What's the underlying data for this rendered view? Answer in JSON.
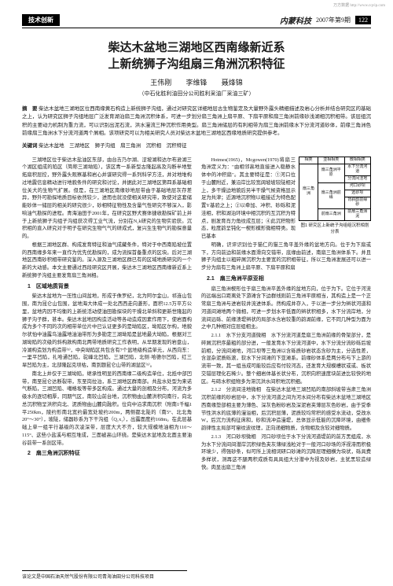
{
  "header": {
    "tag": "技术创新",
    "journal": "内蒙科技",
    "issue": "2007年第9期",
    "pagenum": "122",
    "url_note": "万方数据 http://www.cqvip.com"
  },
  "title_line1": "柴达木盆地三湖地区西南缘新近系",
  "title_line2": "上新统狮子沟组扇三角洲沉积特征",
  "authors": {
    "a1": "王伟刚",
    "a2": "李维锋",
    "a3": "聂烽锦"
  },
  "affil": "（中石化胜利油田分公司胜利采油厂采油三矿）",
  "abstract": {
    "label": "摘　要",
    "text": "柴达木盆地三湖地区位西南缘黄石构造上新统狮子沟组，通过对研究区详细地层古生物鉴定及大量野外露头精细描述及岩心分析并结合研究区的基础之上，认为研究区狮子沟组地层广泛发育湖泊扇三角洲沉积体系，可进一步划分扇三角洲上扇平原、下扇平原和扇三角洲前缘砂浅湖相沉积相带。该层组沉积的主要动力机制为重力流，可以识别出泥石流，洪水漫流三种沉积作用类型。扇三角洲储层的有利相带为扇三角洲前缘水下分流河道砂体，前缘三角洲色前缘扇三角洲水下分流河道两个屑相。该项研究可以为相关研究人员对柴达木盆地三湖地区西缘地质研究提供参考。"
  },
  "keywords": {
    "label": "关键词",
    "text": "柴达木盆地　三湖地区　狮子沟组　扇三角洲　沉积相　沉积特征"
  },
  "col1": {
    "p1": "三湖地区位于柴达木盐油区东部，由台吉乃尔湖、涩坡湖和达尔布逊湖三个湖区组成的陷区（简称三湖坳陷），该区青一系新型古隆起高及沟断半地堑拓扇积层控，野外露头观察基和岩心并谋研究得一系列科学方法，并对地堆构过地震信息精动进行地貌条件的研究和讨论，并据此对三湖地区第四系基础相位关大的生物气扩展。但是，在三湖地区南缘砂地层带由于基础地层灰存差异，野外可勘探地质目标依然较少，进而也就没使相关研究带，致使对这套储能砂体一储层的相关的研究很少，砂相特征物性及含量气性研究不够深入，影响油气勘探的进程。青海油田于2001年，在研究区野犬赛体捷收勘探矿前上并于上新统狮子沟组子沟组获次得工业气流，分别在N₂k研究的生物实验获。沉积相的直入研究对于明子在研究生物气气的研成式，复兴生生物气的勘探意量的。",
    "p2": "根据三湖地区群、构成发育特征和油气成藏条件，特对于中西南陷坡位置的西南缘多年来一直作为优先优勘探的，成为流探首备重点的区块。后对三湖地区西南砂积相带研究鉴的。深入源及三湖地区群已有的区域地质研究的一个新的大动感。本文主要通过西段研究区开展，柴达木三湖地区西南缘新近系上新统狮子沟组主要发育扇三角洲相。",
    "sec1_h": "1　区域地质背景",
    "p3": "柴达木盆地为一压性山间盆地，形成于侏罗纪，北为阿尔金山，祁连山包围，南为昆仑山包围，盆地海大体成一处北西西走向菱形，面积12.5万平方公里，盆地内因不均衡的上新统活动使油田勘探块的干燥北单斜和更新世隆起的狮子沟子群，甚本。柴达木盆地因构造活动等各动造成因素作用下，使岩面构成为多个不同的次的相带单位片中已认证更多的是坳陷区，坳陷区尔构，地貌尔状怕中油露鸟油露地油油带形为多勘定三湖坳陷是盆地最大坳陷，根据对三湖坳陷的次级的斜构款构南北两带地质研究工作表明，从早期发现的岩盘山，冷湖构造划为构造带⁽³⁾，中央坳陷区共包含有7个盆地级构造单元，从西向东：一里平凹陷，扎哈通凹陷，驼峰北凹陷，三湖凹陷，北侧·哈德尔凹陷，红三旱凹陷为主，北部隆起克坝枯，南到题昆仑山带的湖盆区⁽⁵⁾。",
    "p4": "南北上井仅于三湖坳陷，继承性明显的西南缘二级构造单位，北抵中部凹带，南至昆仑达断裂带，东至岗拉泊，系三湖地区群南部。共盐水处型为来诺气断陷，三湖凹陷、噶格坂等带多区构成。通过大量的剖相及分布，河流为多级水的逐切相厚，同期气区，南较山前台地，沉积物由山麓洪积向南行，向北总沉积物呈洪积向北、泥质物由山麓向融积。位向中沿求南沉积（附南1千幅1平250km，陵约形南北宽约最宽处坡约200m，两侧都北陡的（南5°、北北角20°～30°），坡陡，储器砂系为下干沟组（Q₁x₁），出露面度约168m。在此层基础上单一组平行基级的次凌深带，层度大大不齐，较大规模地油相为110～115°、这些小盐溪与相互堆成，三面被高山环绕。是柴达木盆地及北面主要油谷前带一系剖区带。",
    "sec2_h": "2　扇三角洲沉积特征"
  },
  "col2": {
    "p1": "Hotmes(1965)，Mcgowen(1970)将扇三角洲定义为：\"由相邻高地直接进入稳静水体中的冲积扇\"。其主要特征是：①河口位于山麓附近，兼沿岸比较宽阔坡坡较陡相对上，多干燥边地貌后另半干燥气候资格显示足为共津；近源地沉积物以粗接近为特色配置Y基验之上；②以牵加、冲积、砂砾和泥洼相，积和湖泊环境中相沉积的互沉积为特点，剧发育肖力角纹成互层；④此沉积物形态，粒度韵呈钝化一楔形模形微相特类。现已基本",
    "p2": "明确，识评识别位于猫仁的猫三角平盖外缘的盆地方向。位于为下扇或下，方向前边和前缘水面滑向交错带，底缘由前述，南扇三角洲体系下。并且狮子沟组主以粗碎屑沉积为主要宽的沉积相带征，所以三角洲发展还可以进一步分为扇有三角洲上扇平原、下扇平原和扇",
    "sec21_h": "2.1　扇三角洲平原亚相",
    "p3": "扇三角洲楔形位于扇三角洲平盖外缘的盆地方向，位于为下。它位于河流的远端出口距离处下游滩含下边群线则前三角洲平原相当，其构造上是一个正常扇三角洲与进岩较井流进体系。然构成并存入，于以进一步分为辫状河道和河道间滩地两个微相，可进一步划水平低面的辫状积相多，水下分流岸地，分流间远砾、前缘溃堤辫状的局部水含岩较重的韵湖前缘，它不同几种型为面为之中几种相对应层组相主。",
    "sec211_h": "2.1.1　水下分支河道微相　水下分流河道是扇三角洲前缘的骨架部分，是碎屑沉积序最粗的部分进，一般发育水下分流河道中，水下分流分流砂砾后坡前相，分流间滩地，河口坝等三角洲以含砾质砂岩状态含砂为主，分选性差，含混杂泥质砾滚，软水下分间滩的下亚滩系。前缘砂体系是两分布与下上游的流带一致，其一组当成可能较后应有付较河态，还发育大规模槽状或或、板状交错层理化石稀少。整个细岩体基长状分布，沉积向积速度块前进比较快的地区。与碲水积组物多为滞沉洪水间积地沉积细。",
    "sec212_h": "2.1.2　分流间洼地微相　在柴达木盆地三湖凹陷的南部斜坡带当肃三角洲沉积前缘的砂岩层中，水下分流河道之间为河水间分布有柴达木盆地三湖地区西南缘垫部相主要为薄色、深灰色粉砂岩及深泥岩夹薄层灰色砂岩，由于受季节性洪水的底薄的漫溢相，后沉积层薄，泥质较均常积的感受水流动，受改水W，后沉力流构征床和，砂和流冲造漫堤，总体显示低能的沉降环境，由细条韵律性主局部可窜纹波纹理，正向递细物质，含物相及含较对细物质。",
    "sec213_h": "2.1.3　河口砂坝微相　河口砂坝位于水下分流河道堤前的前方黑组成，水为水下分流间间潜岸沉积绿色夹灰薄绿浅粒对于一般河口砂场的浮视滞而积极环境少，得强砂条，似可所上流相词研口砂滩的沉降层理细横为块状，砾具费多样状，测再这不腿两积成质有具具组大分潜中为视及砂岩，主犹黑较造绿快。肉显出扇三角洲"
  },
  "figure": {
    "caption": "图1 研究区上新统子沟组组沉积相划分表",
    "cells": {
      "r1c1": "相类",
      "r1c2": "亚相相类",
      "r1c3": "微相相类",
      "r2c1": "扇三角洲",
      "r2c2a": "扇三角洲平原",
      "r2c2b": "扇三角洲前缘",
      "r2c2c": "前扇三角洲",
      "r3a": "水下分流河道",
      "r3b": "分流间洼地",
      "r3c": "河口砂坝",
      "r3d": "远砂坝",
      "r4a": "背斜韵前缘砂",
      "r4b": "前扇三角洲泥"
    }
  },
  "footer": "该论文是中国石油天然气股份有限公司青海油田分公司科技项目"
}
